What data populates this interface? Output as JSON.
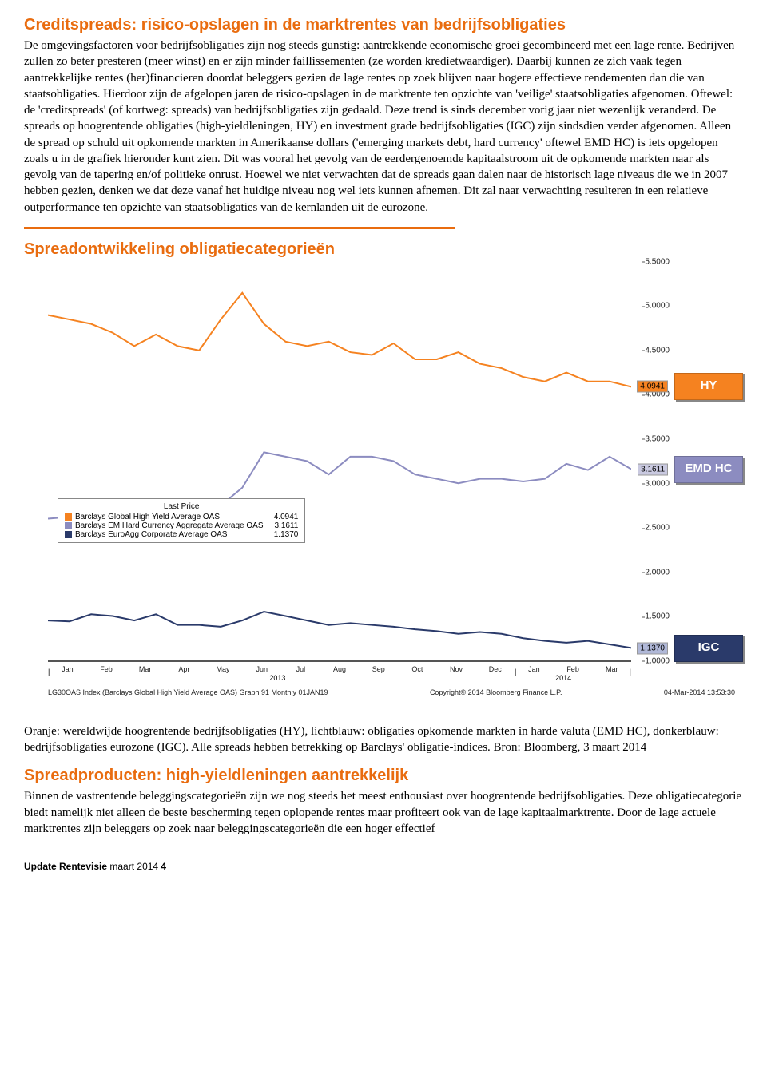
{
  "section1": {
    "heading": "Creditspreads: risico-opslagen in de marktrentes van bedrijfsobligaties",
    "heading_color": "#e96c0f",
    "body": "De omgevingsfactoren voor bedrijfsobligaties zijn nog steeds gunstig: aantrekkende economische groei gecombineerd met een lage rente. Bedrijven zullen zo beter presteren (meer winst) en er zijn minder faillissementen (ze worden kredietwaardiger). Daarbij kunnen ze zich vaak tegen aantrekkelijke rentes (her)financieren doordat beleggers gezien de lage rentes op zoek blijven naar hogere effectieve rendementen dan die van staatsobligaties. Hierdoor zijn de afgelopen jaren de risico-opslagen in de marktrente ten opzichte van 'veilige' staatsobligaties afgenomen. Oftewel: de 'creditspreads' (of kortweg: spreads) van bedrijfsobligaties zijn gedaald. Deze trend is sinds december vorig jaar niet wezenlijk veranderd. De spreads op hoogrentende obligaties (high-yieldleningen, HY) en investment grade bedrijfsobligaties (IGC) zijn sindsdien verder afgenomen. Alleen de spread op schuld uit opkomende markten in Amerikaanse dollars ('emerging markets debt, hard currency' oftewel EMD HC) is iets opgelopen zoals u in de grafiek hieronder kunt zien. Dit was vooral het gevolg van de eerdergenoemde kapitaalstroom uit de opkomende markten naar als gevolg van de tapering en/of politieke onrust. Hoewel we niet verwachten dat de spreads gaan dalen naar de historisch lage niveaus die we in 2007 hebben gezien, denken we dat deze vanaf het huidige niveau nog wel iets kunnen afnemen. Dit zal naar verwachting resulteren in een relatieve outperformance ten opzichte van staatsobligaties van de kernlanden uit de eurozone."
  },
  "chart": {
    "title": "Spreadontwikkeling obligatiecategorieën",
    "title_color": "#e96c0f",
    "ylim": [
      1.0,
      5.5
    ],
    "ytick_step": 0.5,
    "yticks": [
      "5.5000",
      "5.0000",
      "4.5000",
      "4.0000",
      "3.5000",
      "3.0000",
      "2.5000",
      "2.0000",
      "1.5000",
      "1.0000"
    ],
    "months": [
      "Jan",
      "Feb",
      "Mar",
      "Apr",
      "May",
      "Jun",
      "Jul",
      "Aug",
      "Sep",
      "Oct",
      "Nov",
      "Dec",
      "Jan",
      "Feb",
      "Mar"
    ],
    "year_2013_label": "2013",
    "year_2014_label": "2014",
    "series": {
      "hy": {
        "label": "Barclays Global High Yield Average OAS",
        "color": "#f58220",
        "end_label": "4.0941",
        "end_label_bg": "#f58220",
        "badge": "HY",
        "badge_bg": "#f58220",
        "values": [
          4.9,
          4.85,
          4.8,
          4.7,
          4.55,
          4.68,
          4.55,
          4.5,
          4.85,
          5.15,
          4.8,
          4.6,
          4.55,
          4.6,
          4.48,
          4.45,
          4.58,
          4.4,
          4.4,
          4.48,
          4.35,
          4.3,
          4.2,
          4.15,
          4.25,
          4.15,
          4.15,
          4.09
        ]
      },
      "emd": {
        "label": "Barclays EM Hard Currency Aggregate Average OAS",
        "color": "#8c8cc0",
        "end_label": "3.1611",
        "end_label_bg": "#c9c9e0",
        "badge": "EMD HC",
        "badge_bg": "#8c8cc0",
        "values": [
          2.6,
          2.62,
          2.7,
          2.78,
          2.75,
          2.8,
          2.82,
          2.8,
          2.75,
          2.95,
          3.35,
          3.3,
          3.25,
          3.1,
          3.3,
          3.3,
          3.25,
          3.1,
          3.05,
          3.0,
          3.05,
          3.05,
          3.02,
          3.05,
          3.22,
          3.15,
          3.3,
          3.16
        ]
      },
      "igc": {
        "label": "Barclays EuroAgg Corporate Average OAS",
        "color": "#2a3a6a",
        "end_label": "1.1370",
        "end_label_bg": "#b0b8d8",
        "badge": "IGC",
        "badge_bg": "#2a3a6a",
        "values": [
          1.45,
          1.44,
          1.52,
          1.5,
          1.45,
          1.52,
          1.4,
          1.4,
          1.38,
          1.45,
          1.55,
          1.5,
          1.45,
          1.4,
          1.42,
          1.4,
          1.38,
          1.35,
          1.33,
          1.3,
          1.32,
          1.3,
          1.25,
          1.22,
          1.2,
          1.22,
          1.18,
          1.14
        ]
      }
    },
    "legend_title": "Last Price",
    "footer_left": "LG30OAS Index (Barclays Global High Yield Average OAS) Graph 91  Monthly 01JAN19",
    "footer_mid": "Copyright© 2014 Bloomberg Finance L.P.",
    "footer_right": "04-Mar-2014 13:53:30"
  },
  "caption": "Oranje: wereldwijde hoogrentende bedrijfsobligaties (HY), lichtblauw: obligaties opkomende markten in harde valuta (EMD HC), donkerblauw: bedrijfsobligaties eurozone (IGC). Alle spreads hebben betrekking op Barclays' obligatie-indices. Bron: Bloomberg, 3 maart 2014",
  "section2": {
    "heading": "Spreadproducten: high-yieldleningen aantrekkelijk",
    "heading_color": "#e96c0f",
    "body": "Binnen de vastrentende beleggingscategorieën zijn we nog steeds het meest enthousiast over hoogrentende bedrijfsobligaties. Deze obligatiecategorie biedt namelijk niet alleen de beste bescherming tegen oplopende rentes maar profiteert ook van de lage kapitaalmarktrente. Door de lage actuele marktrentes zijn beleggers op zoek naar beleggingscategorieën die een hoger effectief"
  },
  "pagefoot": {
    "prefix": "Update Rentevisie",
    "suffix": " maart 2014 ",
    "num": "4"
  }
}
